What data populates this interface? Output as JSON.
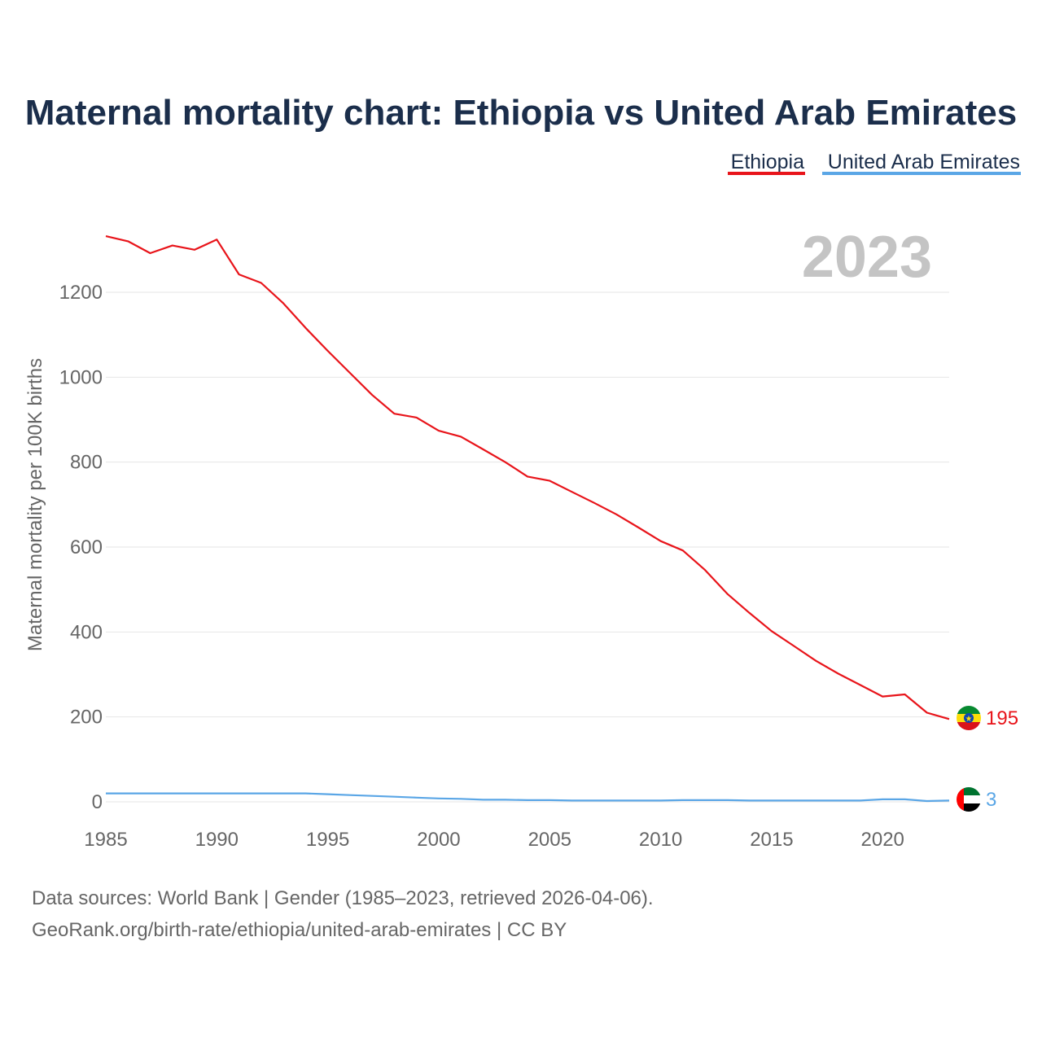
{
  "chart_data": {
    "type": "line",
    "title": "Maternal mortality chart: Ethiopia vs United Arab Emirates",
    "ylabel": "Maternal mortality per 100K births",
    "xlabel": "",
    "year_label": "2023",
    "xlim": [
      1985,
      2023
    ],
    "ylim": [
      0,
      1300
    ],
    "x_ticks": [
      1985,
      1990,
      1995,
      2000,
      2005,
      2010,
      2015,
      2020
    ],
    "y_ticks": [
      0,
      200,
      400,
      600,
      800,
      1000,
      1200
    ],
    "grid": true,
    "legend_position": "top-right",
    "x": [
      1985,
      1986,
      1987,
      1988,
      1989,
      1990,
      1991,
      1992,
      1993,
      1994,
      1995,
      1996,
      1997,
      1998,
      1999,
      2000,
      2001,
      2002,
      2003,
      2004,
      2005,
      2006,
      2007,
      2008,
      2009,
      2010,
      2011,
      2012,
      2013,
      2014,
      2015,
      2016,
      2017,
      2018,
      2019,
      2020,
      2021,
      2022,
      2023
    ],
    "series": [
      {
        "name": "Ethiopia",
        "color": "#e8141a",
        "end_label": "195",
        "values": [
          1332,
          1320,
          1292,
          1310,
          1300,
          1324,
          1242,
          1222,
          1174,
          1116,
          1062,
          1010,
          958,
          914,
          905,
          874,
          860,
          830,
          800,
          766,
          756,
          730,
          704,
          677,
          646,
          614,
          592,
          546,
          490,
          445,
          402,
          367,
          332,
          302,
          275,
          248,
          253,
          210,
          195
        ]
      },
      {
        "name": "United Arab Emirates",
        "color": "#5aa6e6",
        "end_label": "3",
        "values": [
          20,
          20,
          20,
          20,
          20,
          20,
          20,
          20,
          20,
          20,
          18,
          16,
          14,
          12,
          10,
          8,
          7,
          5,
          5,
          4,
          4,
          3,
          3,
          3,
          3,
          3,
          4,
          4,
          4,
          3,
          3,
          3,
          3,
          3,
          3,
          6,
          6,
          2,
          3
        ]
      }
    ]
  },
  "footer": {
    "line1": "Data sources: World Bank | Gender (1985–2023, retrieved 2026-04-06).",
    "line2": "GeoRank.org/birth-rate/ethiopia/united-arab-emirates | CC BY"
  },
  "flags": {
    "ethiopia": {
      "green": "#078930",
      "yellow": "#fcdd09",
      "red": "#da121a",
      "emblem": "#0f47af"
    },
    "uae": {
      "green": "#00732f",
      "white": "#ffffff",
      "black": "#000000",
      "red": "#ff0000"
    }
  }
}
